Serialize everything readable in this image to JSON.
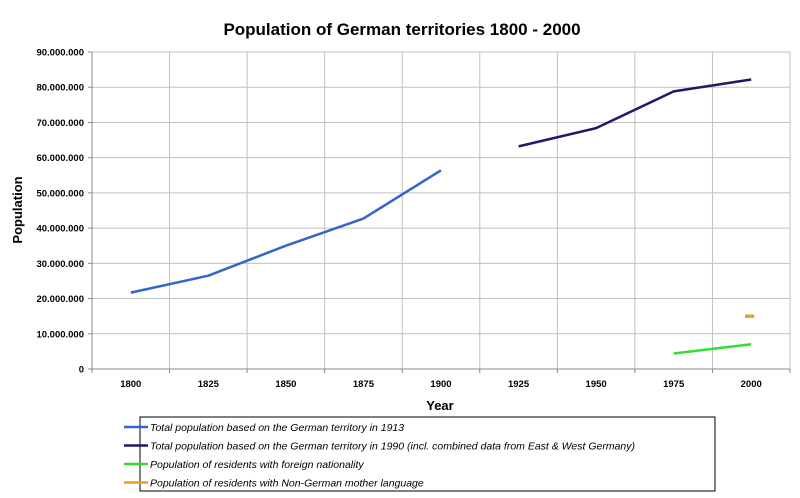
{
  "chart_data": {
    "type": "line",
    "title": "Population of German territories 1800 - 2000",
    "xlabel": "Year",
    "ylabel": "Population",
    "ylim": [
      0,
      90000000
    ],
    "y_ticks": [
      "0",
      "10.000.000",
      "20.000.000",
      "30.000.000",
      "40.000.000",
      "50.000.000",
      "60.000.000",
      "70.000.000",
      "80.000.000",
      "90.000.000"
    ],
    "x_ticks": [
      "1800",
      "1825",
      "1850",
      "1875",
      "1900",
      "1925",
      "1950",
      "1975",
      "2000"
    ],
    "grid": true,
    "legend_position": "bottom",
    "series": [
      {
        "name": "Total population based on the German territory in 1913",
        "color": "#3366cc",
        "points": [
          [
            1800,
            21700000
          ],
          [
            1825,
            26500000
          ],
          [
            1850,
            35000000
          ],
          [
            1875,
            42700000
          ],
          [
            1900,
            56400000
          ]
        ]
      },
      {
        "name": "Total population based on the German territory in 1990 (incl. combined data from East & West Germany)",
        "color": "#1f1a66",
        "points": [
          [
            1925,
            63200000
          ],
          [
            1950,
            68400000
          ],
          [
            1975,
            78800000
          ],
          [
            2000,
            82200000
          ]
        ]
      },
      {
        "name": "Population of residents with foreign nationality",
        "color": "#33dd33",
        "points": [
          [
            1975,
            4400000
          ],
          [
            2000,
            7000000
          ]
        ]
      },
      {
        "name": "Population of residents with Non-German mother language",
        "color": "#e8a020",
        "points": [
          [
            1998,
            15000000
          ],
          [
            2001,
            15000000
          ]
        ]
      }
    ]
  }
}
